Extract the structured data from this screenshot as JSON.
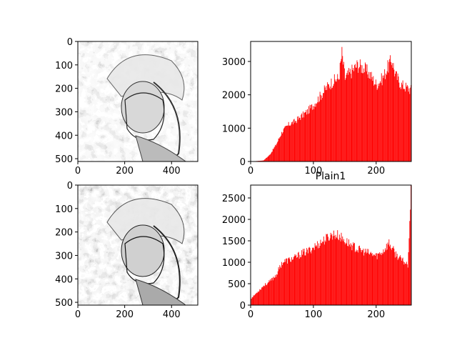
{
  "colors": {
    "bar": "#ff0000",
    "axis": "#000000",
    "background": "#ffffff"
  },
  "image_panels": [
    {
      "xticks": [
        "0",
        "200",
        "400"
      ],
      "yticks": [
        "0",
        "100",
        "200",
        "300",
        "400",
        "500"
      ],
      "xlim": [
        0,
        512
      ],
      "ylim": [
        0,
        512
      ],
      "description": "grayscale equalized portrait (woman in hat)"
    },
    {
      "xticks": [
        "0",
        "200",
        "400"
      ],
      "yticks": [
        "0",
        "100",
        "200",
        "300",
        "400",
        "500"
      ],
      "xlim": [
        0,
        512
      ],
      "ylim": [
        0,
        512
      ],
      "description": "grayscale equalized portrait (woman in hat)"
    }
  ],
  "chart_data": [
    {
      "type": "bar",
      "title": "",
      "xlabel": "",
      "ylabel": "",
      "xlim": [
        0,
        256
      ],
      "ylim": [
        0,
        3600
      ],
      "xticks": [
        "0",
        "100",
        "200"
      ],
      "yticks": [
        "0",
        "1000",
        "2000",
        "3000"
      ],
      "x": [
        0,
        20,
        30,
        40,
        50,
        60,
        70,
        80,
        90,
        100,
        110,
        120,
        130,
        140,
        145,
        150,
        160,
        170,
        180,
        190,
        200,
        210,
        220,
        225,
        230,
        240,
        250,
        255
      ],
      "values": [
        0,
        30,
        200,
        500,
        900,
        1100,
        1200,
        1350,
        1500,
        1700,
        1950,
        2200,
        2400,
        2500,
        3250,
        2500,
        2700,
        2900,
        2800,
        2600,
        2300,
        2500,
        2900,
        3050,
        2600,
        2300,
        2200,
        2150
      ]
    },
    {
      "type": "bar",
      "title": "Plain1",
      "xlabel": "",
      "ylabel": "",
      "xlim": [
        0,
        256
      ],
      "ylim": [
        0,
        2800
      ],
      "xticks": [
        "0",
        "100",
        "200"
      ],
      "yticks": [
        "0",
        "500",
        "1000",
        "1500",
        "2000",
        "2500"
      ],
      "x": [
        0,
        10,
        20,
        30,
        40,
        50,
        60,
        70,
        80,
        90,
        100,
        110,
        120,
        130,
        140,
        150,
        160,
        170,
        180,
        190,
        200,
        210,
        220,
        230,
        240,
        250,
        255
      ],
      "values": [
        150,
        300,
        450,
        550,
        700,
        1000,
        1050,
        1100,
        1200,
        1250,
        1350,
        1450,
        1550,
        1650,
        1620,
        1500,
        1400,
        1300,
        1250,
        1200,
        1150,
        1250,
        1450,
        1200,
        1050,
        950,
        2680
      ]
    }
  ]
}
